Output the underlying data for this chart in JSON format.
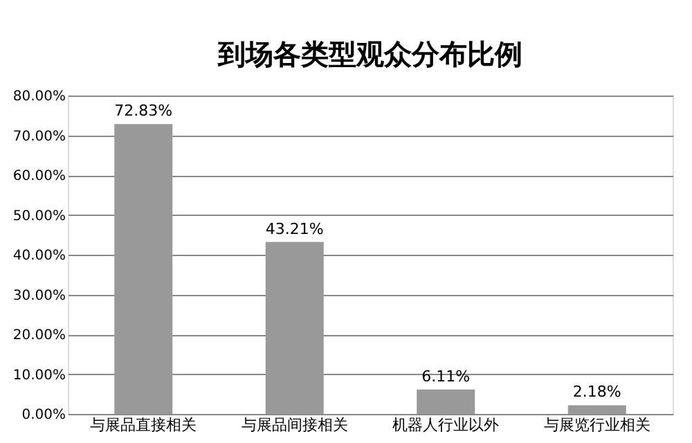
{
  "chart_data": {
    "type": "bar",
    "title": "到场各类型观众分布比例",
    "categories": [
      "与展品直接相关",
      "与展品间接相关",
      "机器人行业以外",
      "与展览行业相关"
    ],
    "values": [
      72.83,
      43.21,
      6.11,
      2.18
    ],
    "value_labels": [
      "72.83%",
      "43.21%",
      "6.11%",
      "2.18%"
    ],
    "color": "#999999",
    "ylim": [
      0,
      80
    ],
    "yticks": [
      {
        "value": 0,
        "label": "0.00%"
      },
      {
        "value": 10,
        "label": "10.00%"
      },
      {
        "value": 20,
        "label": "20.00%"
      },
      {
        "value": 30,
        "label": "30.00%"
      },
      {
        "value": 40,
        "label": "40.00%"
      },
      {
        "value": 50,
        "label": "50.00%"
      },
      {
        "value": 60,
        "label": "60.00%"
      },
      {
        "value": 70,
        "label": "70.00%"
      },
      {
        "value": 80,
        "label": "80.00%"
      }
    ],
    "grid": "y",
    "legend": false
  }
}
